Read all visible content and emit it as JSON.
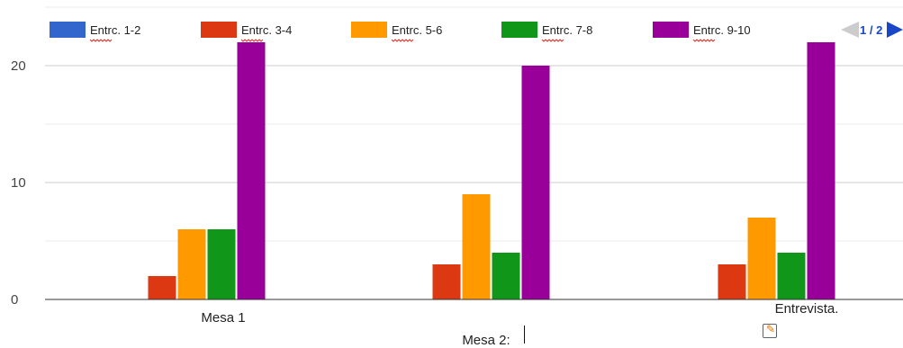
{
  "chart_data": {
    "type": "bar",
    "categories": [
      "Mesa 1",
      "Mesa 2:",
      "Entrevista."
    ],
    "series": [
      {
        "name": "Entrc. 1-2",
        "color": "#3366cc",
        "values": [
          0,
          0,
          0
        ]
      },
      {
        "name": "Entrc. 3-4",
        "color": "#dc3912",
        "values": [
          2,
          3,
          3
        ]
      },
      {
        "name": "Entrc. 5-6",
        "color": "#ff9900",
        "values": [
          6,
          9,
          7
        ]
      },
      {
        "name": "Entrc. 7-8",
        "color": "#109618",
        "values": [
          6,
          4,
          4
        ]
      },
      {
        "name": "Entrc. 9-10",
        "color": "#990099",
        "values": [
          22,
          20,
          22
        ]
      }
    ],
    "y_ticks": [
      "0",
      "10",
      "20"
    ],
    "ylim": [
      0,
      23
    ],
    "grid": true,
    "legend_position": "top",
    "pager": "1 / 2"
  }
}
